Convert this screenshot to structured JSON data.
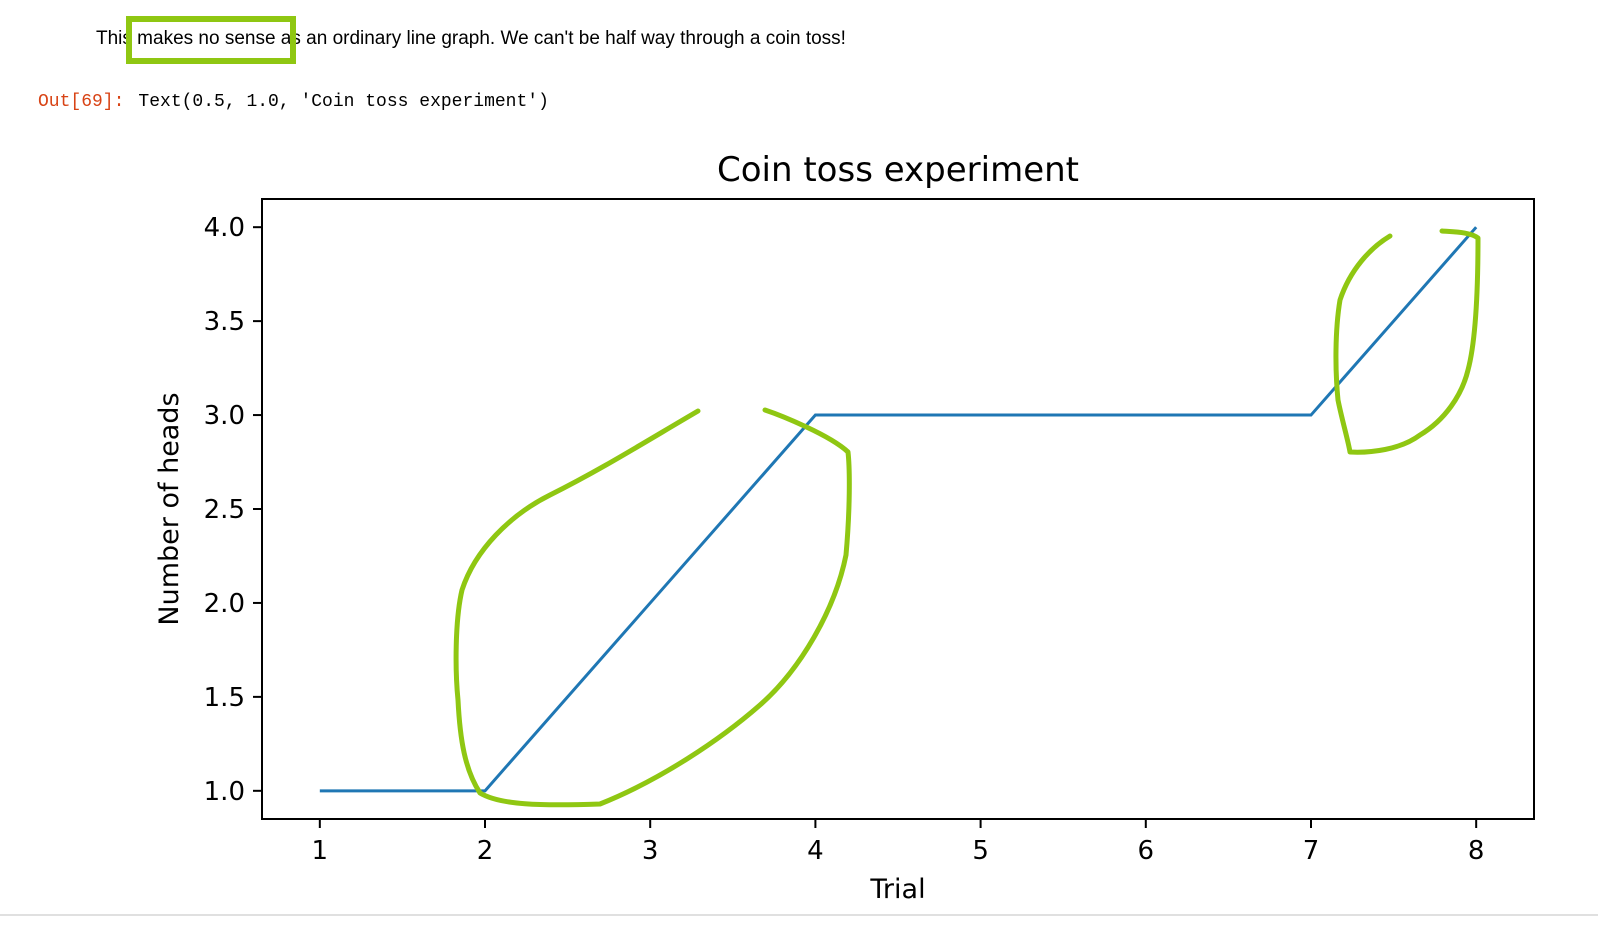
{
  "notebook": {
    "markdown_text": "This makes no sense as an ordinary line graph. We can't be half way through a coin toss!",
    "out_prompt": "Out[69]:",
    "out_text": "Text(0.5, 1.0, 'Coin toss experiment')"
  },
  "colors": {
    "line": "#1f77b4",
    "annotation": "#8fc712",
    "prompt": "#d84315"
  },
  "chart_data": {
    "type": "line",
    "title": "Coin toss experiment",
    "xlabel": "Trial",
    "ylabel": "Number of heads",
    "x": [
      1,
      2,
      3,
      4,
      5,
      6,
      7,
      8
    ],
    "series": [
      {
        "values": [
          1,
          1,
          2,
          3,
          3,
          3,
          3,
          4
        ]
      }
    ],
    "xlim": [
      0.65,
      8.35
    ],
    "ylim": [
      0.85,
      4.15
    ],
    "xticks": [
      1,
      2,
      3,
      4,
      5,
      6,
      7,
      8
    ],
    "xtick_labels": [
      "1",
      "2",
      "3",
      "4",
      "5",
      "6",
      "7",
      "8"
    ],
    "yticks": [
      1.0,
      1.5,
      2.0,
      2.5,
      3.0,
      3.5,
      4.0
    ],
    "ytick_labels": [
      "1.0",
      "1.5",
      "2.0",
      "2.5",
      "3.0",
      "3.5",
      "4.0"
    ],
    "grid": false,
    "legend": "none"
  }
}
